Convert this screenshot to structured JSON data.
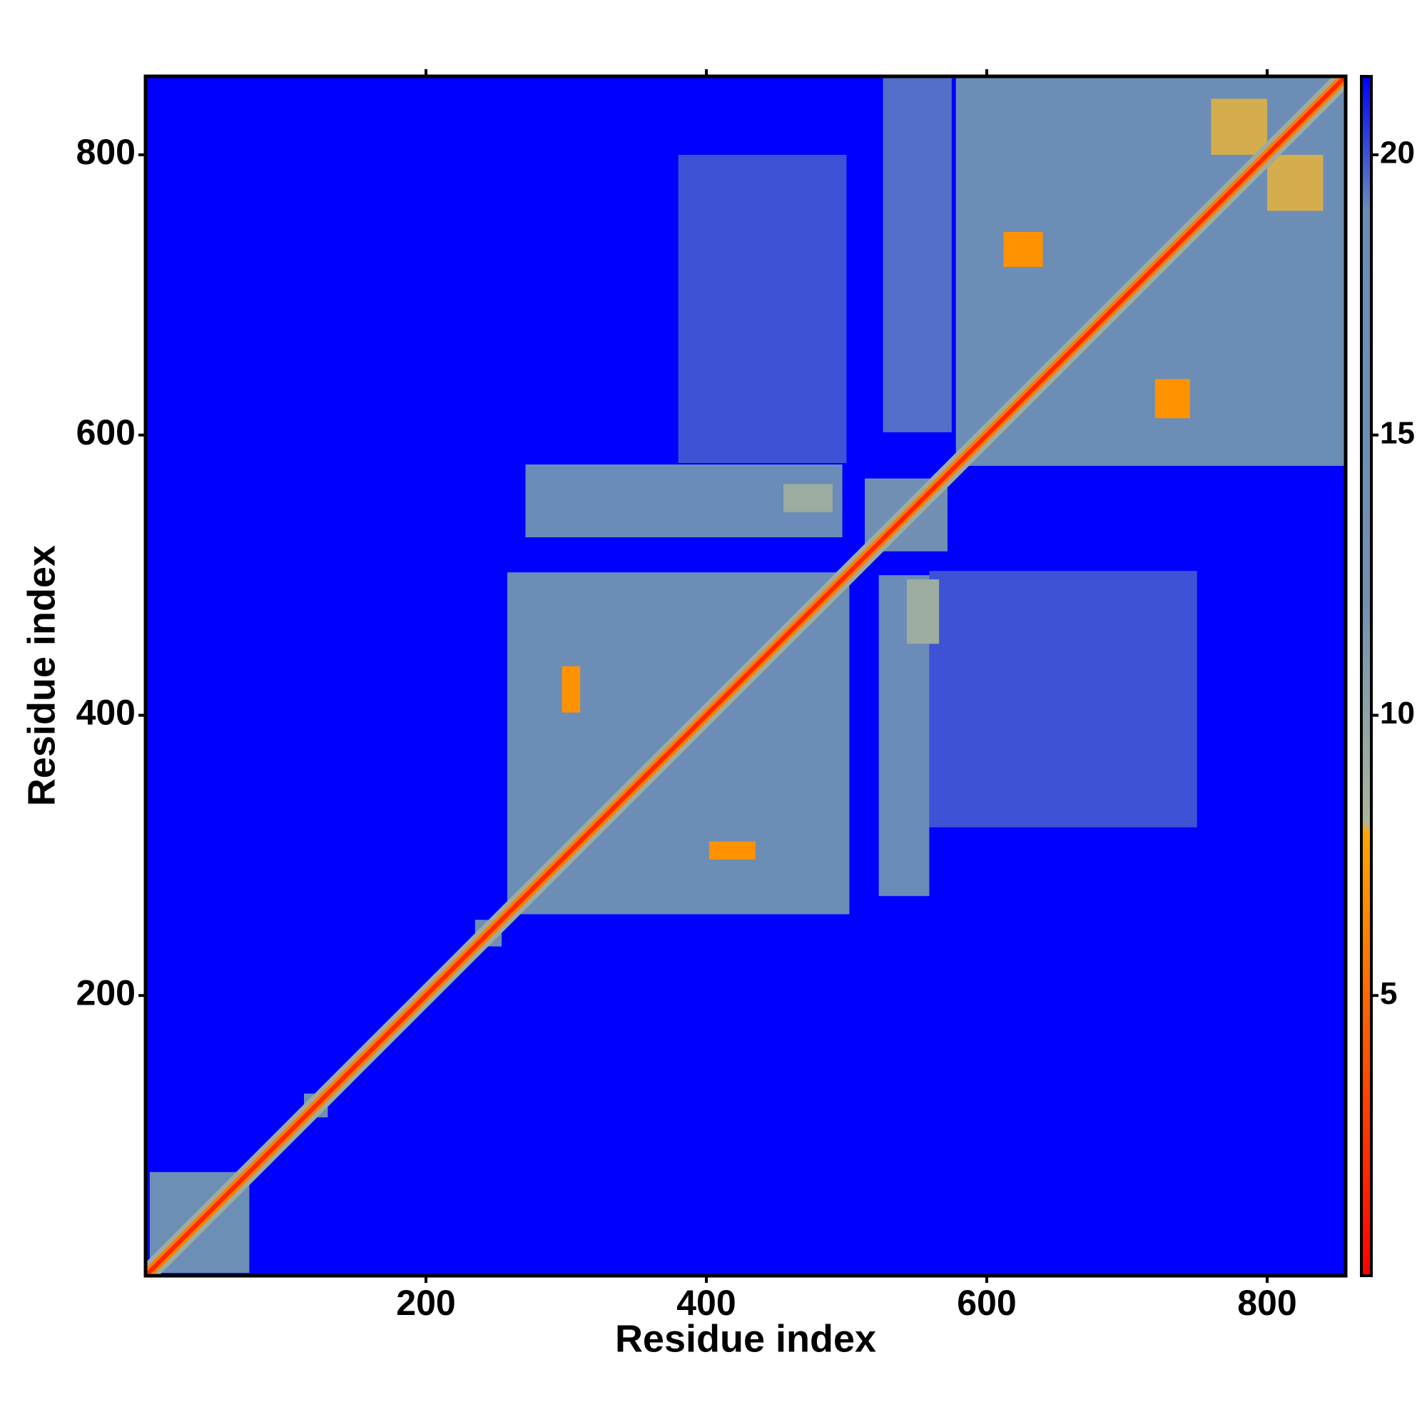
{
  "chart_data": {
    "type": "heatmap",
    "x_label": "Residue index",
    "y_label": "Residue index",
    "xlim": [
      0,
      856
    ],
    "ylim": [
      0,
      856
    ],
    "xticks": [
      200,
      400,
      600,
      800
    ],
    "yticks": [
      200,
      400,
      600,
      800
    ],
    "background_value": 21.4,
    "regions": [
      {
        "x": [
          3,
          74
        ],
        "y": [
          2,
          74
        ],
        "value": 16
      },
      {
        "x": [
          113,
          130
        ],
        "y": [
          113,
          130
        ],
        "value": 13
      },
      {
        "x": [
          235,
          254
        ],
        "y": [
          235,
          254
        ],
        "value": 13
      },
      {
        "x": [
          380,
          500
        ],
        "y": [
          580,
          800
        ],
        "value": 20
      },
      {
        "x": [
          559,
          750
        ],
        "y": [
          320,
          503
        ],
        "value": 20
      },
      {
        "x": [
          526,
          575
        ],
        "y": [
          602,
          855
        ],
        "value": 19.5
      },
      {
        "x": [
          271,
          497
        ],
        "y": [
          527,
          579
        ],
        "value": 18.5
      },
      {
        "x": [
          523,
          559
        ],
        "y": [
          271,
          500
        ],
        "value": 18.5
      },
      {
        "x": [
          258,
          502
        ],
        "y": [
          258,
          502
        ],
        "value": 17
      },
      {
        "x": [
          578,
          856
        ],
        "y": [
          578,
          856
        ],
        "value": 17
      },
      {
        "x": [
          513,
          572
        ],
        "y": [
          517,
          569
        ],
        "value": 13
      },
      {
        "x": [
          455,
          490
        ],
        "y": [
          545,
          565
        ],
        "value": 9
      },
      {
        "x": [
          543,
          566
        ],
        "y": [
          451,
          497
        ],
        "value": 9
      },
      {
        "x": [
          402,
          435
        ],
        "y": [
          297,
          310
        ],
        "value": 7
      },
      {
        "x": [
          297,
          310
        ],
        "y": [
          402,
          435
        ],
        "value": 7
      },
      {
        "x": [
          612,
          640
        ],
        "y": [
          720,
          745
        ],
        "value": 7
      },
      {
        "x": [
          720,
          745
        ],
        "y": [
          612,
          640
        ],
        "value": 7
      },
      {
        "x": [
          760,
          800
        ],
        "y": [
          800,
          840
        ],
        "value": 8
      },
      {
        "x": [
          800,
          840
        ],
        "y": [
          760,
          800
        ],
        "value": 8
      }
    ],
    "diagonal_values": [
      9,
      6,
      2
    ],
    "colorbar": {
      "clim": [
        0,
        21.4
      ],
      "ticks": [
        5,
        10,
        15,
        20
      ],
      "stops": [
        {
          "value": 0,
          "color": "#ff0000"
        },
        {
          "value": 7.9,
          "color": "#ffa500"
        },
        {
          "value": 8.1,
          "color": "#a9b59b"
        },
        {
          "value": 12,
          "color": "#7290b2"
        },
        {
          "value": 19,
          "color": "#6a8cb8"
        },
        {
          "value": 21.4,
          "color": "#0000ff"
        }
      ]
    }
  }
}
